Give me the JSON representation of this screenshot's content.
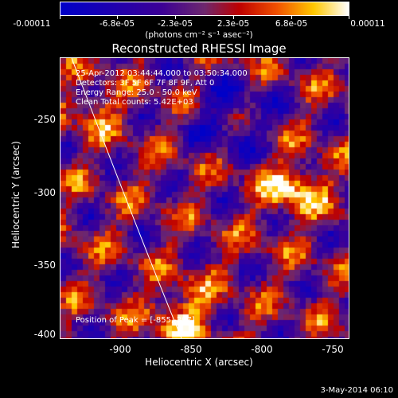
{
  "colorbar": {
    "ticks": [
      "-0.00011",
      "-6.8e-05",
      "-2.3e-05",
      "2.3e-05",
      "6.8e-05",
      "0.00011"
    ],
    "units_label": "(photons cm⁻² s⁻¹ asec⁻²)"
  },
  "title": "Reconstructed RHESSI Image",
  "info": {
    "line1": "25-Apr-2012 03:44:44.000 to 03:50:34.000",
    "line2": "Detectors: 3F 5F 6F 7F 8F 9F, Att 0",
    "line3": "Energy Range: 25.0 - 50.0 keV",
    "line4": "Clean    Total counts: 5.42E+03"
  },
  "peak": "Position of Peak = [-855,-397]",
  "axes": {
    "xlabel": "Heliocentric X (arcsec)",
    "ylabel": "Heliocentric Y (arcsec)",
    "xticks": [
      "-900",
      "-850",
      "-800",
      "-750"
    ],
    "yticks": [
      "-250",
      "-300",
      "-350",
      "-400"
    ]
  },
  "footer_date": "3-May-2014 06:10"
}
